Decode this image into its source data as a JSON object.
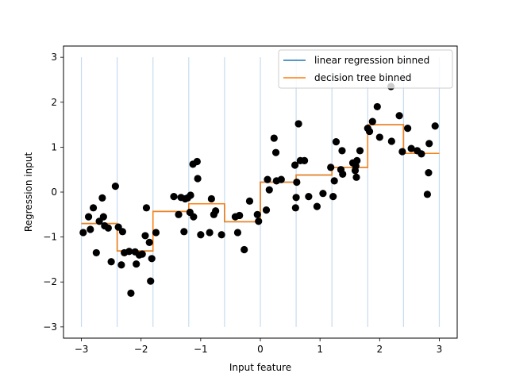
{
  "chart_data": {
    "type": "line",
    "xlabel": "Input feature",
    "ylabel": "Regression input",
    "xlim": [
      -3.3,
      3.3
    ],
    "ylim": [
      -3.25,
      3.25
    ],
    "xticks": [
      -3,
      -2,
      -1,
      0,
      1,
      2,
      3
    ],
    "yticks": [
      -3,
      -2,
      -1,
      0,
      1,
      2,
      3
    ],
    "grid": false,
    "legend_placement": "top-right",
    "bin_edges": [
      -3.0,
      -2.4,
      -1.8,
      -1.2,
      -0.6,
      0.0,
      0.6,
      1.2,
      1.8,
      2.4,
      3.0
    ],
    "bin_edge_color": "#c6dbef",
    "series": [
      {
        "name": "linear regression binned",
        "color": "#1f77b4",
        "x": [
          -3.0,
          -2.4,
          -2.4,
          -1.8,
          -1.8,
          -1.2,
          -1.2,
          -0.6,
          -0.6,
          0.0,
          0.0,
          0.6,
          0.6,
          1.2,
          1.2,
          1.8,
          1.8,
          2.4,
          2.4,
          3.0
        ],
        "y": [
          -0.7,
          -0.7,
          -1.31,
          -1.31,
          -0.43,
          -0.43,
          -0.26,
          -0.26,
          -0.66,
          -0.66,
          0.22,
          0.22,
          0.38,
          0.38,
          0.55,
          0.55,
          1.5,
          1.5,
          0.86,
          0.86
        ]
      },
      {
        "name": "decision tree binned",
        "color": "#ff7f0e",
        "x": [
          -3.0,
          -2.4,
          -2.4,
          -1.8,
          -1.8,
          -1.2,
          -1.2,
          -0.6,
          -0.6,
          0.0,
          0.0,
          0.6,
          0.6,
          1.2,
          1.2,
          1.8,
          1.8,
          2.4,
          2.4,
          3.0
        ],
        "y": [
          -0.7,
          -0.7,
          -1.31,
          -1.31,
          -0.43,
          -0.43,
          -0.26,
          -0.26,
          -0.66,
          -0.66,
          0.22,
          0.22,
          0.38,
          0.38,
          0.55,
          0.55,
          1.5,
          1.5,
          0.86,
          0.86
        ]
      }
    ],
    "scatter": {
      "color": "#000000",
      "points": [
        [
          -2.97,
          -0.9
        ],
        [
          -2.88,
          -0.55
        ],
        [
          -2.85,
          -0.83
        ],
        [
          -2.8,
          -0.35
        ],
        [
          -2.75,
          -1.35
        ],
        [
          -2.7,
          -0.65
        ],
        [
          -2.65,
          -0.13
        ],
        [
          -2.63,
          -0.55
        ],
        [
          -2.61,
          -0.75
        ],
        [
          -2.55,
          -0.8
        ],
        [
          -2.5,
          -1.55
        ],
        [
          -2.43,
          0.13
        ],
        [
          -2.38,
          -0.78
        ],
        [
          -2.33,
          -1.62
        ],
        [
          -2.31,
          -0.88
        ],
        [
          -2.28,
          -1.35
        ],
        [
          -2.2,
          -1.32
        ],
        [
          -2.17,
          -2.25
        ],
        [
          -2.08,
          -1.6
        ],
        [
          -2.1,
          -1.33
        ],
        [
          -2.03,
          -1.4
        ],
        [
          -1.98,
          -1.38
        ],
        [
          -1.93,
          -0.97
        ],
        [
          -1.91,
          -0.35
        ],
        [
          -1.86,
          -1.12
        ],
        [
          -1.84,
          -1.98
        ],
        [
          -1.82,
          -1.48
        ],
        [
          -1.75,
          -0.9
        ],
        [
          -1.45,
          -0.1
        ],
        [
          -1.37,
          -0.5
        ],
        [
          -1.33,
          -0.12
        ],
        [
          -1.28,
          -0.88
        ],
        [
          -1.26,
          -0.15
        ],
        [
          -1.22,
          -0.13
        ],
        [
          -1.18,
          -0.45
        ],
        [
          -1.17,
          -0.07
        ],
        [
          -1.13,
          0.62
        ],
        [
          -1.12,
          -0.55
        ],
        [
          -1.06,
          0.68
        ],
        [
          -1.05,
          0.3
        ],
        [
          -1.0,
          -0.95
        ],
        [
          -0.85,
          -0.9
        ],
        [
          -0.82,
          -0.15
        ],
        [
          -0.78,
          -0.5
        ],
        [
          -0.75,
          -0.42
        ],
        [
          -0.65,
          -0.95
        ],
        [
          -0.42,
          -0.55
        ],
        [
          -0.38,
          -0.9
        ],
        [
          -0.35,
          -0.52
        ],
        [
          -0.27,
          -1.28
        ],
        [
          -0.18,
          -0.2
        ],
        [
          -0.05,
          -0.5
        ],
        [
          -0.03,
          -0.65
        ],
        [
          0.1,
          -0.4
        ],
        [
          0.12,
          0.28
        ],
        [
          0.15,
          0.05
        ],
        [
          0.23,
          1.2
        ],
        [
          0.26,
          0.88
        ],
        [
          0.27,
          0.25
        ],
        [
          0.35,
          0.28
        ],
        [
          0.58,
          0.6
        ],
        [
          0.59,
          -0.35
        ],
        [
          0.6,
          -0.12
        ],
        [
          0.61,
          0.22
        ],
        [
          0.64,
          1.52
        ],
        [
          0.67,
          0.7
        ],
        [
          0.74,
          0.7
        ],
        [
          0.81,
          -0.1
        ],
        [
          0.95,
          -0.32
        ],
        [
          1.05,
          -0.03
        ],
        [
          1.18,
          0.55
        ],
        [
          1.22,
          -0.1
        ],
        [
          1.24,
          0.25
        ],
        [
          1.27,
          1.12
        ],
        [
          1.35,
          0.5
        ],
        [
          1.37,
          0.92
        ],
        [
          1.38,
          0.4
        ],
        [
          1.55,
          0.65
        ],
        [
          1.59,
          0.48
        ],
        [
          1.6,
          0.58
        ],
        [
          1.61,
          0.33
        ],
        [
          1.62,
          0.7
        ],
        [
          1.67,
          0.92
        ],
        [
          1.8,
          1.42
        ],
        [
          1.83,
          1.35
        ],
        [
          1.88,
          1.57
        ],
        [
          1.96,
          1.9
        ],
        [
          2.0,
          1.22
        ],
        [
          2.19,
          2.35
        ],
        [
          2.2,
          1.13
        ],
        [
          2.33,
          1.7
        ],
        [
          2.38,
          0.9
        ],
        [
          2.47,
          1.42
        ],
        [
          2.53,
          0.97
        ],
        [
          2.63,
          0.92
        ],
        [
          2.7,
          0.85
        ],
        [
          2.8,
          -0.05
        ],
        [
          2.82,
          0.43
        ],
        [
          2.83,
          1.08
        ],
        [
          2.93,
          1.47
        ]
      ]
    }
  }
}
